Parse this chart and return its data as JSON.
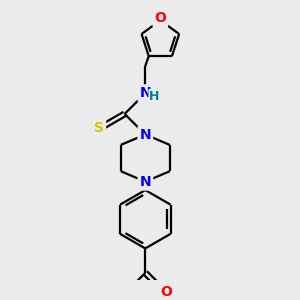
{
  "background_color": "#ebebeb",
  "atom_colors": {
    "C": "#000000",
    "N": "#0000ff",
    "O": "#ff0000",
    "S": "#cccc00",
    "H": "#008080"
  },
  "bond_color": "#000000",
  "bond_width": 1.6,
  "font_size_atom": 10,
  "font_size_h": 9
}
